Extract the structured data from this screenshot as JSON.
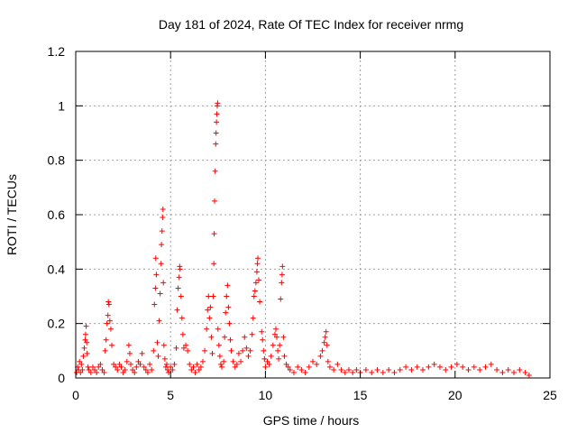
{
  "chart_data": {
    "type": "scatter",
    "title": "Day 181 of 2024, Rate Of TEC Index for receiver nrmg",
    "xlabel": "GPS time / hours",
    "ylabel": "ROTI / TECUs",
    "xlim": [
      0,
      25
    ],
    "ylim": [
      0,
      1.2
    ],
    "x_ticks": [
      0,
      5,
      10,
      15,
      20,
      25
    ],
    "x_tick_labels": [
      "0",
      "5",
      "10",
      "15",
      "20",
      "25"
    ],
    "y_ticks": [
      0,
      0.2,
      0.4,
      0.6,
      0.8,
      1,
      1.2
    ],
    "y_tick_labels": [
      "0",
      "0.2",
      "0.4",
      "0.6",
      "0.8",
      "1",
      "1.2"
    ],
    "grid": true,
    "marker": "plus",
    "color": "#ff0000",
    "series": [
      {
        "name": "ROTI",
        "points": [
          [
            0.05,
            0.02
          ],
          [
            0.1,
            0.04
          ],
          [
            0.15,
            0.03
          ],
          [
            0.2,
            0.06
          ],
          [
            0.25,
            0.02
          ],
          [
            0.3,
            0.05
          ],
          [
            0.35,
            0.03
          ],
          [
            0.4,
            0.08
          ],
          [
            0.45,
            0.11
          ],
          [
            0.5,
            0.14
          ],
          [
            0.52,
            0.16
          ],
          [
            0.55,
            0.19
          ],
          [
            0.58,
            0.13
          ],
          [
            0.6,
            0.09
          ],
          [
            0.65,
            0.04
          ],
          [
            0.7,
            0.03
          ],
          [
            0.8,
            0.02
          ],
          [
            0.9,
            0.04
          ],
          [
            1.0,
            0.03
          ],
          [
            1.1,
            0.02
          ],
          [
            1.2,
            0.04
          ],
          [
            1.3,
            0.05
          ],
          [
            1.4,
            0.03
          ],
          [
            1.5,
            0.02
          ],
          [
            1.55,
            0.1
          ],
          [
            1.6,
            0.14
          ],
          [
            1.65,
            0.2
          ],
          [
            1.7,
            0.23
          ],
          [
            1.72,
            0.28
          ],
          [
            1.75,
            0.27
          ],
          [
            1.8,
            0.21
          ],
          [
            1.85,
            0.18
          ],
          [
            1.9,
            0.12
          ],
          [
            2.0,
            0.05
          ],
          [
            2.1,
            0.04
          ],
          [
            2.2,
            0.03
          ],
          [
            2.3,
            0.05
          ],
          [
            2.4,
            0.04
          ],
          [
            2.5,
            0.02
          ],
          [
            2.6,
            0.03
          ],
          [
            2.7,
            0.06
          ],
          [
            2.8,
            0.12
          ],
          [
            2.85,
            0.09
          ],
          [
            2.9,
            0.05
          ],
          [
            3.0,
            0.03
          ],
          [
            3.1,
            0.02
          ],
          [
            3.2,
            0.04
          ],
          [
            3.3,
            0.06
          ],
          [
            3.4,
            0.05
          ],
          [
            3.5,
            0.09
          ],
          [
            3.6,
            0.04
          ],
          [
            3.7,
            0.03
          ],
          [
            3.8,
            0.02
          ],
          [
            3.9,
            0.05
          ],
          [
            4.0,
            0.03
          ],
          [
            4.1,
            0.1
          ],
          [
            4.15,
            0.27
          ],
          [
            4.2,
            0.33
          ],
          [
            4.22,
            0.44
          ],
          [
            4.25,
            0.38
          ],
          [
            4.3,
            0.13
          ],
          [
            4.35,
            0.08
          ],
          [
            4.4,
            0.21
          ],
          [
            4.45,
            0.31
          ],
          [
            4.5,
            0.42
          ],
          [
            4.52,
            0.49
          ],
          [
            4.55,
            0.54
          ],
          [
            4.58,
            0.59
          ],
          [
            4.6,
            0.62
          ],
          [
            4.62,
            0.35
          ],
          [
            4.65,
            0.12
          ],
          [
            4.7,
            0.07
          ],
          [
            4.75,
            0.04
          ],
          [
            4.8,
            0.05
          ],
          [
            4.85,
            0.03
          ],
          [
            4.9,
            0.02
          ],
          [
            5.0,
            0.04
          ],
          [
            5.1,
            0.03
          ],
          [
            5.2,
            0.05
          ],
          [
            5.3,
            0.11
          ],
          [
            5.35,
            0.25
          ],
          [
            5.4,
            0.33
          ],
          [
            5.45,
            0.37
          ],
          [
            5.48,
            0.41
          ],
          [
            5.5,
            0.4
          ],
          [
            5.55,
            0.3
          ],
          [
            5.6,
            0.22
          ],
          [
            5.65,
            0.16
          ],
          [
            5.7,
            0.11
          ],
          [
            5.8,
            0.12
          ],
          [
            5.9,
            0.1
          ],
          [
            6.0,
            0.05
          ],
          [
            6.1,
            0.03
          ],
          [
            6.2,
            0.04
          ],
          [
            6.3,
            0.02
          ],
          [
            6.4,
            0.05
          ],
          [
            6.5,
            0.03
          ],
          [
            6.6,
            0.04
          ],
          [
            6.7,
            0.06
          ],
          [
            6.8,
            0.1
          ],
          [
            6.9,
            0.18
          ],
          [
            6.95,
            0.25
          ],
          [
            7.0,
            0.3
          ],
          [
            7.05,
            0.22
          ],
          [
            7.1,
            0.26
          ],
          [
            7.15,
            0.15
          ],
          [
            7.2,
            0.09
          ],
          [
            7.25,
            0.3
          ],
          [
            7.28,
            0.42
          ],
          [
            7.3,
            0.53
          ],
          [
            7.32,
            0.65
          ],
          [
            7.35,
            0.76
          ],
          [
            7.38,
            0.86
          ],
          [
            7.4,
            0.9
          ],
          [
            7.42,
            0.94
          ],
          [
            7.44,
            0.97
          ],
          [
            7.46,
            1.0
          ],
          [
            7.48,
            1.01
          ],
          [
            7.5,
            0.18
          ],
          [
            7.55,
            0.12
          ],
          [
            7.6,
            0.08
          ],
          [
            7.65,
            0.05
          ],
          [
            7.7,
            0.04
          ],
          [
            7.8,
            0.06
          ],
          [
            7.85,
            0.15
          ],
          [
            7.9,
            0.24
          ],
          [
            7.95,
            0.3
          ],
          [
            8.0,
            0.34
          ],
          [
            8.05,
            0.26
          ],
          [
            8.1,
            0.2
          ],
          [
            8.15,
            0.14
          ],
          [
            8.2,
            0.1
          ],
          [
            8.3,
            0.06
          ],
          [
            8.4,
            0.04
          ],
          [
            8.5,
            0.05
          ],
          [
            8.6,
            0.09
          ],
          [
            8.7,
            0.06
          ],
          [
            8.8,
            0.1
          ],
          [
            8.9,
            0.15
          ],
          [
            9.0,
            0.11
          ],
          [
            9.1,
            0.08
          ],
          [
            9.2,
            0.1
          ],
          [
            9.3,
            0.16
          ],
          [
            9.35,
            0.22
          ],
          [
            9.4,
            0.3
          ],
          [
            9.45,
            0.32
          ],
          [
            9.5,
            0.35
          ],
          [
            9.55,
            0.39
          ],
          [
            9.58,
            0.42
          ],
          [
            9.6,
            0.44
          ],
          [
            9.65,
            0.36
          ],
          [
            9.7,
            0.28
          ],
          [
            9.8,
            0.17
          ],
          [
            9.85,
            0.14
          ],
          [
            9.9,
            0.1
          ],
          [
            9.95,
            0.07
          ],
          [
            10.0,
            0.04
          ],
          [
            10.1,
            0.06
          ],
          [
            10.2,
            0.05
          ],
          [
            10.3,
            0.08
          ],
          [
            10.4,
            0.12
          ],
          [
            10.5,
            0.16
          ],
          [
            10.55,
            0.18
          ],
          [
            10.6,
            0.15
          ],
          [
            10.65,
            0.1
          ],
          [
            10.7,
            0.07
          ],
          [
            10.75,
            0.12
          ],
          [
            10.8,
            0.29
          ],
          [
            10.85,
            0.35
          ],
          [
            10.88,
            0.38
          ],
          [
            10.9,
            0.41
          ],
          [
            10.95,
            0.15
          ],
          [
            11.0,
            0.08
          ],
          [
            11.1,
            0.05
          ],
          [
            11.2,
            0.04
          ],
          [
            11.3,
            0.03
          ],
          [
            11.5,
            0.02
          ],
          [
            11.7,
            0.04
          ],
          [
            11.9,
            0.03
          ],
          [
            12.1,
            0.02
          ],
          [
            12.3,
            0.04
          ],
          [
            12.5,
            0.06
          ],
          [
            12.7,
            0.05
          ],
          [
            12.9,
            0.08
          ],
          [
            13.0,
            0.1
          ],
          [
            13.1,
            0.13
          ],
          [
            13.15,
            0.15
          ],
          [
            13.2,
            0.17
          ],
          [
            13.25,
            0.12
          ],
          [
            13.3,
            0.06
          ],
          [
            13.4,
            0.04
          ],
          [
            13.6,
            0.03
          ],
          [
            13.8,
            0.05
          ],
          [
            14.0,
            0.03
          ],
          [
            14.2,
            0.02
          ],
          [
            14.4,
            0.03
          ],
          [
            14.6,
            0.02
          ],
          [
            14.8,
            0.03
          ],
          [
            15.0,
            0.02
          ],
          [
            15.3,
            0.03
          ],
          [
            15.6,
            0.02
          ],
          [
            15.9,
            0.03
          ],
          [
            16.2,
            0.02
          ],
          [
            16.5,
            0.03
          ],
          [
            16.8,
            0.02
          ],
          [
            17.1,
            0.03
          ],
          [
            17.4,
            0.04
          ],
          [
            17.7,
            0.03
          ],
          [
            18.0,
            0.04
          ],
          [
            18.3,
            0.03
          ],
          [
            18.6,
            0.04
          ],
          [
            18.9,
            0.05
          ],
          [
            19.2,
            0.04
          ],
          [
            19.5,
            0.03
          ],
          [
            19.8,
            0.04
          ],
          [
            20.1,
            0.05
          ],
          [
            20.4,
            0.04
          ],
          [
            20.7,
            0.03
          ],
          [
            21.0,
            0.04
          ],
          [
            21.3,
            0.03
          ],
          [
            21.6,
            0.04
          ],
          [
            21.9,
            0.05
          ],
          [
            22.2,
            0.03
          ],
          [
            22.5,
            0.02
          ],
          [
            22.8,
            0.03
          ],
          [
            23.1,
            0.02
          ],
          [
            23.4,
            0.03
          ],
          [
            23.7,
            0.02
          ],
          [
            23.9,
            0.01
          ]
        ]
      }
    ]
  }
}
